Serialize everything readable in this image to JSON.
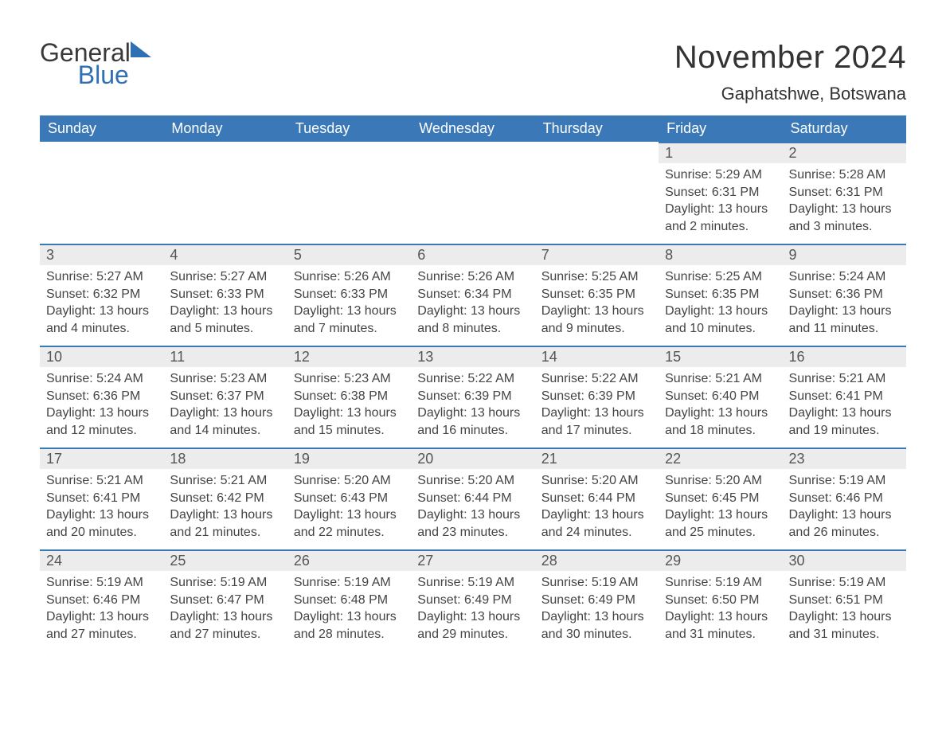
{
  "logo": {
    "line1": "General",
    "line2": "Blue"
  },
  "title": "November 2024",
  "location": "Gaphatshwe, Botswana",
  "colors": {
    "header_bg": "#3b78b8",
    "header_text": "#ffffff",
    "daynum_bg": "#ececec",
    "day_border": "#3b78b8",
    "body_text": "#444444",
    "logo_blue": "#2f6fb3",
    "page_bg": "#ffffff"
  },
  "fonts": {
    "family": "Arial",
    "title_size_pt": 30,
    "location_size_pt": 16,
    "header_size_pt": 14,
    "daynum_size_pt": 14,
    "body_size_pt": 12
  },
  "layout": {
    "columns": 7,
    "rows": 5,
    "first_weekday": "Sunday"
  },
  "weekdays": [
    "Sunday",
    "Monday",
    "Tuesday",
    "Wednesday",
    "Thursday",
    "Friday",
    "Saturday"
  ],
  "weeks": [
    [
      null,
      null,
      null,
      null,
      null,
      {
        "day": "1",
        "sunrise": "Sunrise: 5:29 AM",
        "sunset": "Sunset: 6:31 PM",
        "daylight1": "Daylight: 13 hours",
        "daylight2": "and 2 minutes."
      },
      {
        "day": "2",
        "sunrise": "Sunrise: 5:28 AM",
        "sunset": "Sunset: 6:31 PM",
        "daylight1": "Daylight: 13 hours",
        "daylight2": "and 3 minutes."
      }
    ],
    [
      {
        "day": "3",
        "sunrise": "Sunrise: 5:27 AM",
        "sunset": "Sunset: 6:32 PM",
        "daylight1": "Daylight: 13 hours",
        "daylight2": "and 4 minutes."
      },
      {
        "day": "4",
        "sunrise": "Sunrise: 5:27 AM",
        "sunset": "Sunset: 6:33 PM",
        "daylight1": "Daylight: 13 hours",
        "daylight2": "and 5 minutes."
      },
      {
        "day": "5",
        "sunrise": "Sunrise: 5:26 AM",
        "sunset": "Sunset: 6:33 PM",
        "daylight1": "Daylight: 13 hours",
        "daylight2": "and 7 minutes."
      },
      {
        "day": "6",
        "sunrise": "Sunrise: 5:26 AM",
        "sunset": "Sunset: 6:34 PM",
        "daylight1": "Daylight: 13 hours",
        "daylight2": "and 8 minutes."
      },
      {
        "day": "7",
        "sunrise": "Sunrise: 5:25 AM",
        "sunset": "Sunset: 6:35 PM",
        "daylight1": "Daylight: 13 hours",
        "daylight2": "and 9 minutes."
      },
      {
        "day": "8",
        "sunrise": "Sunrise: 5:25 AM",
        "sunset": "Sunset: 6:35 PM",
        "daylight1": "Daylight: 13 hours",
        "daylight2": "and 10 minutes."
      },
      {
        "day": "9",
        "sunrise": "Sunrise: 5:24 AM",
        "sunset": "Sunset: 6:36 PM",
        "daylight1": "Daylight: 13 hours",
        "daylight2": "and 11 minutes."
      }
    ],
    [
      {
        "day": "10",
        "sunrise": "Sunrise: 5:24 AM",
        "sunset": "Sunset: 6:36 PM",
        "daylight1": "Daylight: 13 hours",
        "daylight2": "and 12 minutes."
      },
      {
        "day": "11",
        "sunrise": "Sunrise: 5:23 AM",
        "sunset": "Sunset: 6:37 PM",
        "daylight1": "Daylight: 13 hours",
        "daylight2": "and 14 minutes."
      },
      {
        "day": "12",
        "sunrise": "Sunrise: 5:23 AM",
        "sunset": "Sunset: 6:38 PM",
        "daylight1": "Daylight: 13 hours",
        "daylight2": "and 15 minutes."
      },
      {
        "day": "13",
        "sunrise": "Sunrise: 5:22 AM",
        "sunset": "Sunset: 6:39 PM",
        "daylight1": "Daylight: 13 hours",
        "daylight2": "and 16 minutes."
      },
      {
        "day": "14",
        "sunrise": "Sunrise: 5:22 AM",
        "sunset": "Sunset: 6:39 PM",
        "daylight1": "Daylight: 13 hours",
        "daylight2": "and 17 minutes."
      },
      {
        "day": "15",
        "sunrise": "Sunrise: 5:21 AM",
        "sunset": "Sunset: 6:40 PM",
        "daylight1": "Daylight: 13 hours",
        "daylight2": "and 18 minutes."
      },
      {
        "day": "16",
        "sunrise": "Sunrise: 5:21 AM",
        "sunset": "Sunset: 6:41 PM",
        "daylight1": "Daylight: 13 hours",
        "daylight2": "and 19 minutes."
      }
    ],
    [
      {
        "day": "17",
        "sunrise": "Sunrise: 5:21 AM",
        "sunset": "Sunset: 6:41 PM",
        "daylight1": "Daylight: 13 hours",
        "daylight2": "and 20 minutes."
      },
      {
        "day": "18",
        "sunrise": "Sunrise: 5:21 AM",
        "sunset": "Sunset: 6:42 PM",
        "daylight1": "Daylight: 13 hours",
        "daylight2": "and 21 minutes."
      },
      {
        "day": "19",
        "sunrise": "Sunrise: 5:20 AM",
        "sunset": "Sunset: 6:43 PM",
        "daylight1": "Daylight: 13 hours",
        "daylight2": "and 22 minutes."
      },
      {
        "day": "20",
        "sunrise": "Sunrise: 5:20 AM",
        "sunset": "Sunset: 6:44 PM",
        "daylight1": "Daylight: 13 hours",
        "daylight2": "and 23 minutes."
      },
      {
        "day": "21",
        "sunrise": "Sunrise: 5:20 AM",
        "sunset": "Sunset: 6:44 PM",
        "daylight1": "Daylight: 13 hours",
        "daylight2": "and 24 minutes."
      },
      {
        "day": "22",
        "sunrise": "Sunrise: 5:20 AM",
        "sunset": "Sunset: 6:45 PM",
        "daylight1": "Daylight: 13 hours",
        "daylight2": "and 25 minutes."
      },
      {
        "day": "23",
        "sunrise": "Sunrise: 5:19 AM",
        "sunset": "Sunset: 6:46 PM",
        "daylight1": "Daylight: 13 hours",
        "daylight2": "and 26 minutes."
      }
    ],
    [
      {
        "day": "24",
        "sunrise": "Sunrise: 5:19 AM",
        "sunset": "Sunset: 6:46 PM",
        "daylight1": "Daylight: 13 hours",
        "daylight2": "and 27 minutes."
      },
      {
        "day": "25",
        "sunrise": "Sunrise: 5:19 AM",
        "sunset": "Sunset: 6:47 PM",
        "daylight1": "Daylight: 13 hours",
        "daylight2": "and 27 minutes."
      },
      {
        "day": "26",
        "sunrise": "Sunrise: 5:19 AM",
        "sunset": "Sunset: 6:48 PM",
        "daylight1": "Daylight: 13 hours",
        "daylight2": "and 28 minutes."
      },
      {
        "day": "27",
        "sunrise": "Sunrise: 5:19 AM",
        "sunset": "Sunset: 6:49 PM",
        "daylight1": "Daylight: 13 hours",
        "daylight2": "and 29 minutes."
      },
      {
        "day": "28",
        "sunrise": "Sunrise: 5:19 AM",
        "sunset": "Sunset: 6:49 PM",
        "daylight1": "Daylight: 13 hours",
        "daylight2": "and 30 minutes."
      },
      {
        "day": "29",
        "sunrise": "Sunrise: 5:19 AM",
        "sunset": "Sunset: 6:50 PM",
        "daylight1": "Daylight: 13 hours",
        "daylight2": "and 31 minutes."
      },
      {
        "day": "30",
        "sunrise": "Sunrise: 5:19 AM",
        "sunset": "Sunset: 6:51 PM",
        "daylight1": "Daylight: 13 hours",
        "daylight2": "and 31 minutes."
      }
    ]
  ]
}
